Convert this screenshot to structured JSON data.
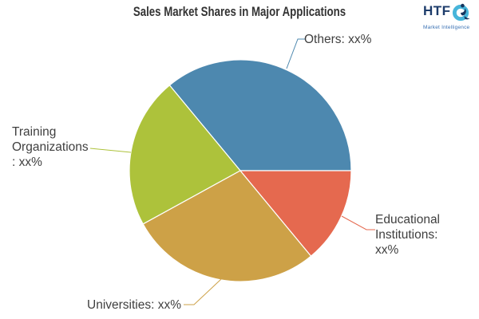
{
  "header": {
    "title": "Sales Market Shares in Major Applications",
    "logo": {
      "text": "HTF",
      "subtext": "Market Intelligence",
      "text_color": "#1d3c6b",
      "subtext_color": "#3b72b4",
      "icon_color_light": "#47b5da",
      "icon_color_dark": "#16355e"
    }
  },
  "chart_data": {
    "type": "pie",
    "title": "Sales Market Shares in Major Applications",
    "direction": "counterclockwise",
    "start_angle_deg": 0,
    "legend_position": "outside-callouts",
    "slices": [
      {
        "label": "Others",
        "value_label": "xx%",
        "percent": 36,
        "color": "#4d88af",
        "label_lines": [
          "Others: xx%"
        ]
      },
      {
        "label": "Training Organizations",
        "value_label": "xx%",
        "percent": 22,
        "color": "#adc23b",
        "label_lines": [
          "Training",
          "Organizations",
          ": xx%"
        ]
      },
      {
        "label": "Universities",
        "value_label": "xx%",
        "percent": 28,
        "color": "#cda147",
        "label_lines": [
          "Universities: xx%"
        ]
      },
      {
        "label": "Educational Institutions",
        "value_label": "xx%",
        "percent": 14,
        "color": "#e5694f",
        "label_lines": [
          "Educational",
          "Institutions:",
          "xx%"
        ]
      }
    ]
  }
}
